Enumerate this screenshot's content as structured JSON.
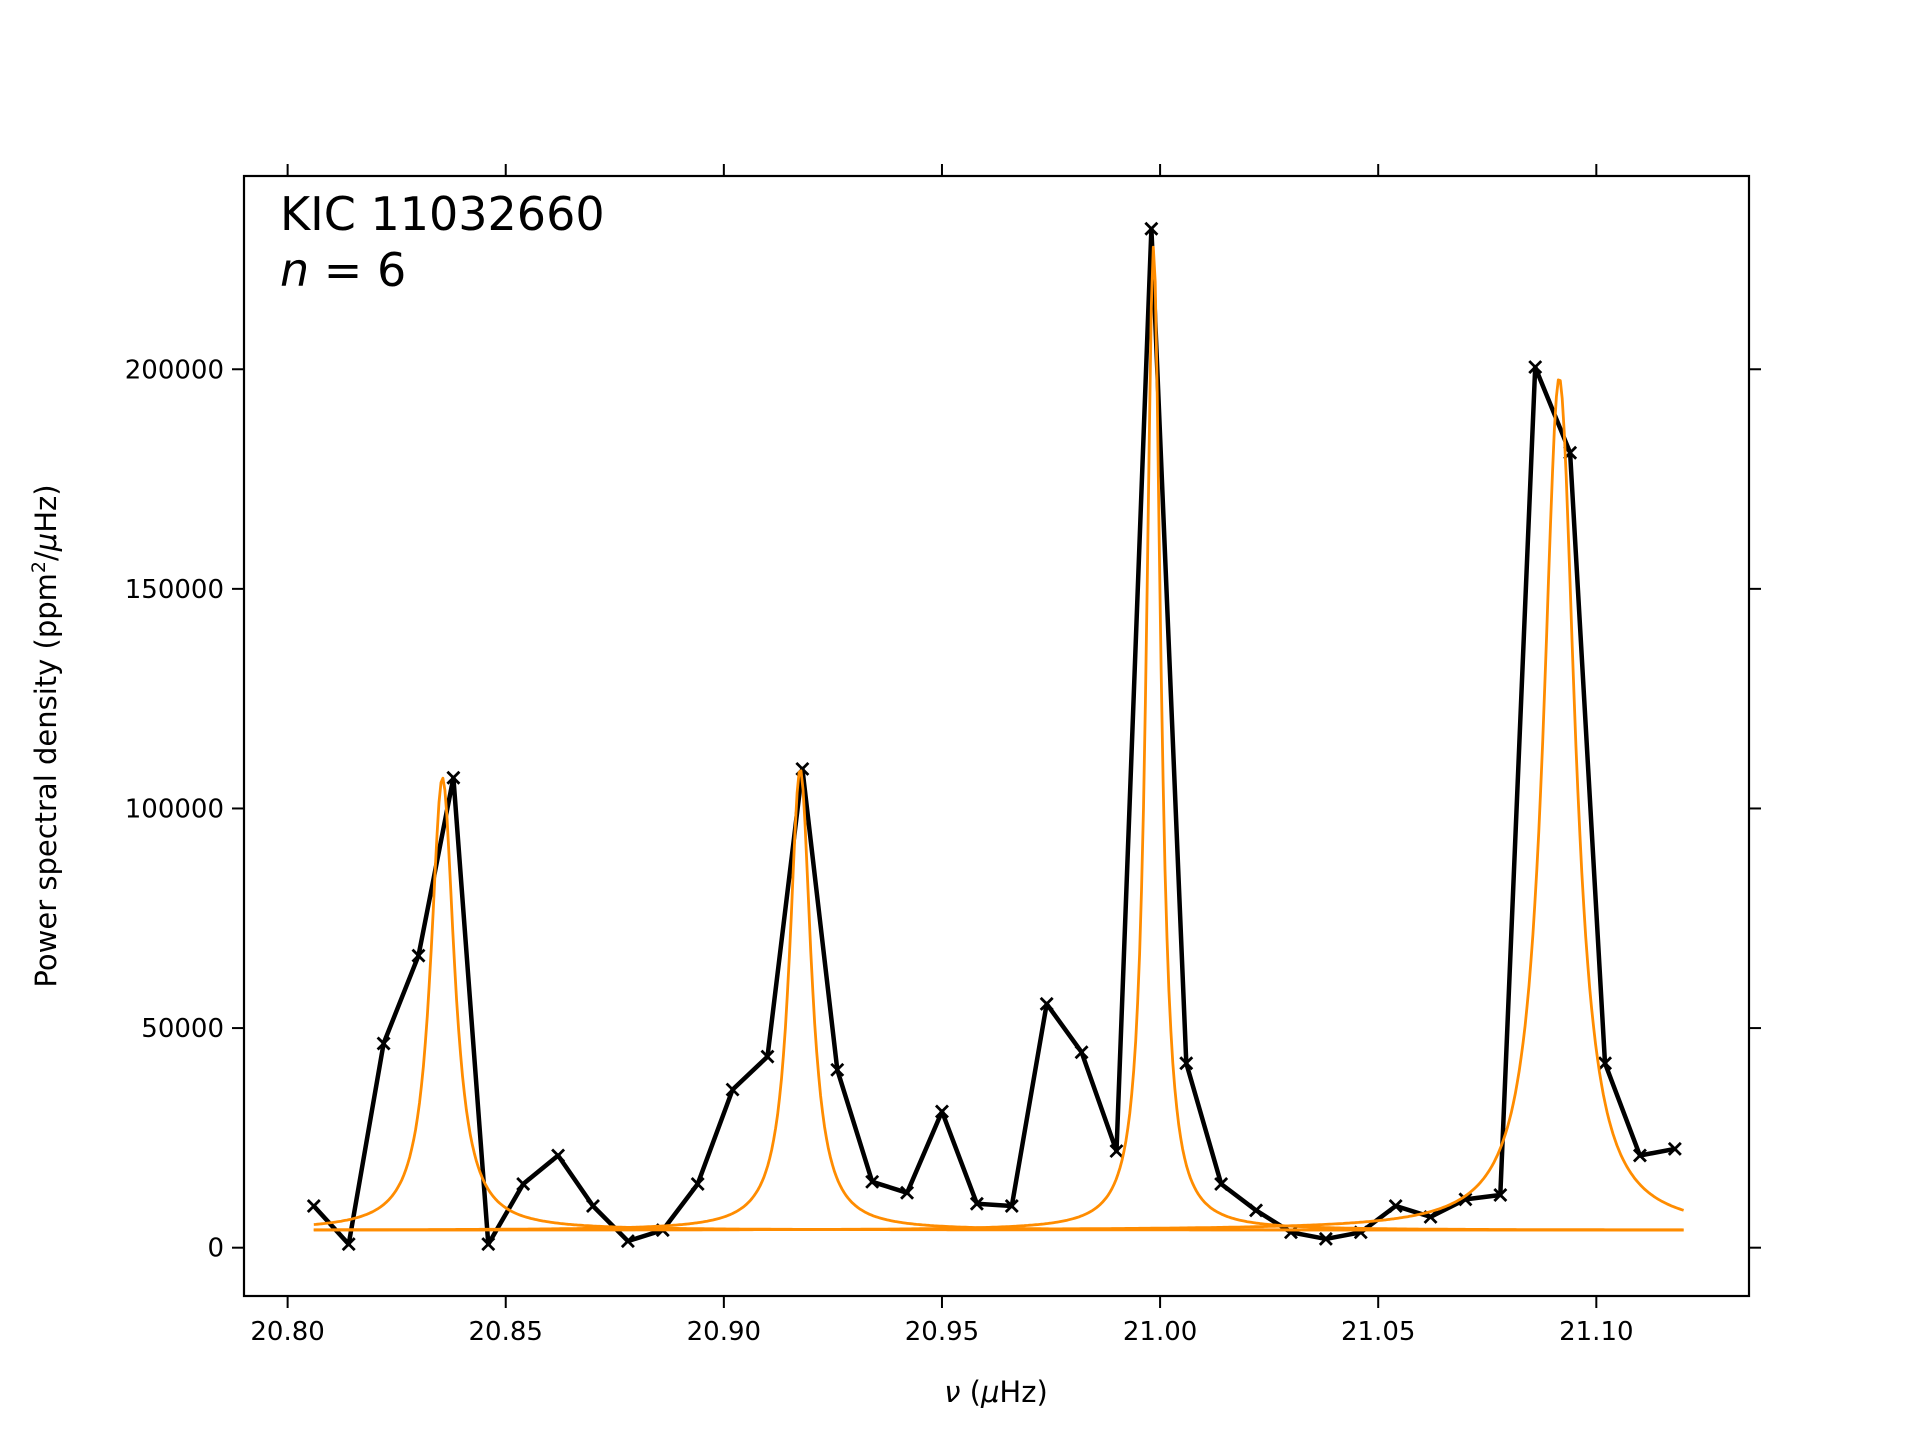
{
  "chart_data": {
    "type": "line",
    "title": "",
    "annotation": {
      "star": "KIC 11032660",
      "order_var": "n",
      "order_eq": " = 6"
    },
    "xlabel": {
      "symbol": "ν",
      "unit_open": " (",
      "mu": "μ",
      "unit_rest": "Hz)"
    },
    "ylabel": {
      "main": "Power spectral density (ppm",
      "sup": "2",
      "slash": "/",
      "mu": "μ",
      "rest": "Hz)"
    },
    "xlim": [
      20.79,
      21.135
    ],
    "ylim": [
      -11000,
      244000
    ],
    "x_ticks": [
      20.8,
      20.85,
      20.9,
      20.95,
      21.0,
      21.05,
      21.1
    ],
    "x_tick_labels": [
      "20.80",
      "20.85",
      "20.90",
      "20.95",
      "21.00",
      "21.05",
      "21.10"
    ],
    "y_ticks": [
      0,
      50000,
      100000,
      150000,
      200000
    ],
    "y_tick_labels": [
      "0",
      "50000",
      "100000",
      "150000",
      "200000"
    ],
    "grid": false,
    "legend": "none",
    "series": [
      {
        "style": "line-with-x-markers",
        "color": "#000000",
        "x": [
          20.806,
          20.814,
          20.822,
          20.83,
          20.838,
          20.846,
          20.854,
          20.862,
          20.87,
          20.878,
          20.886,
          20.894,
          20.902,
          20.91,
          20.918,
          20.926,
          20.934,
          20.942,
          20.95,
          20.958,
          20.966,
          20.974,
          20.982,
          20.99,
          20.998,
          21.006,
          21.014,
          21.022,
          21.03,
          21.038,
          21.046,
          21.054,
          21.062,
          21.07,
          21.078,
          21.086,
          21.094,
          21.102,
          21.11,
          21.118
        ],
        "y": [
          9500,
          800,
          46500,
          66500,
          107000,
          800,
          14500,
          21000,
          9500,
          1500,
          4000,
          14500,
          36000,
          43500,
          109000,
          40500,
          15000,
          12500,
          31000,
          10000,
          9500,
          55500,
          44500,
          22000,
          232000,
          42000,
          14500,
          8500,
          3500,
          2000,
          3500,
          9500,
          7000,
          11000,
          12000,
          200500,
          181000,
          42000,
          21000,
          22500
        ]
      }
    ],
    "fit": {
      "color": "#ff8c00",
      "x_range": [
        20.806,
        21.12
      ],
      "background": 4000,
      "lorentzian_peaks": [
        {
          "center": 20.8355,
          "height": 103000,
          "hwhm": 0.0033
        },
        {
          "center": 20.9175,
          "height": 105000,
          "hwhm": 0.003
        },
        {
          "center": 20.9985,
          "height": 224000,
          "hwhm": 0.002
        },
        {
          "center": 21.0915,
          "height": 194000,
          "hwhm": 0.0044
        }
      ]
    }
  }
}
